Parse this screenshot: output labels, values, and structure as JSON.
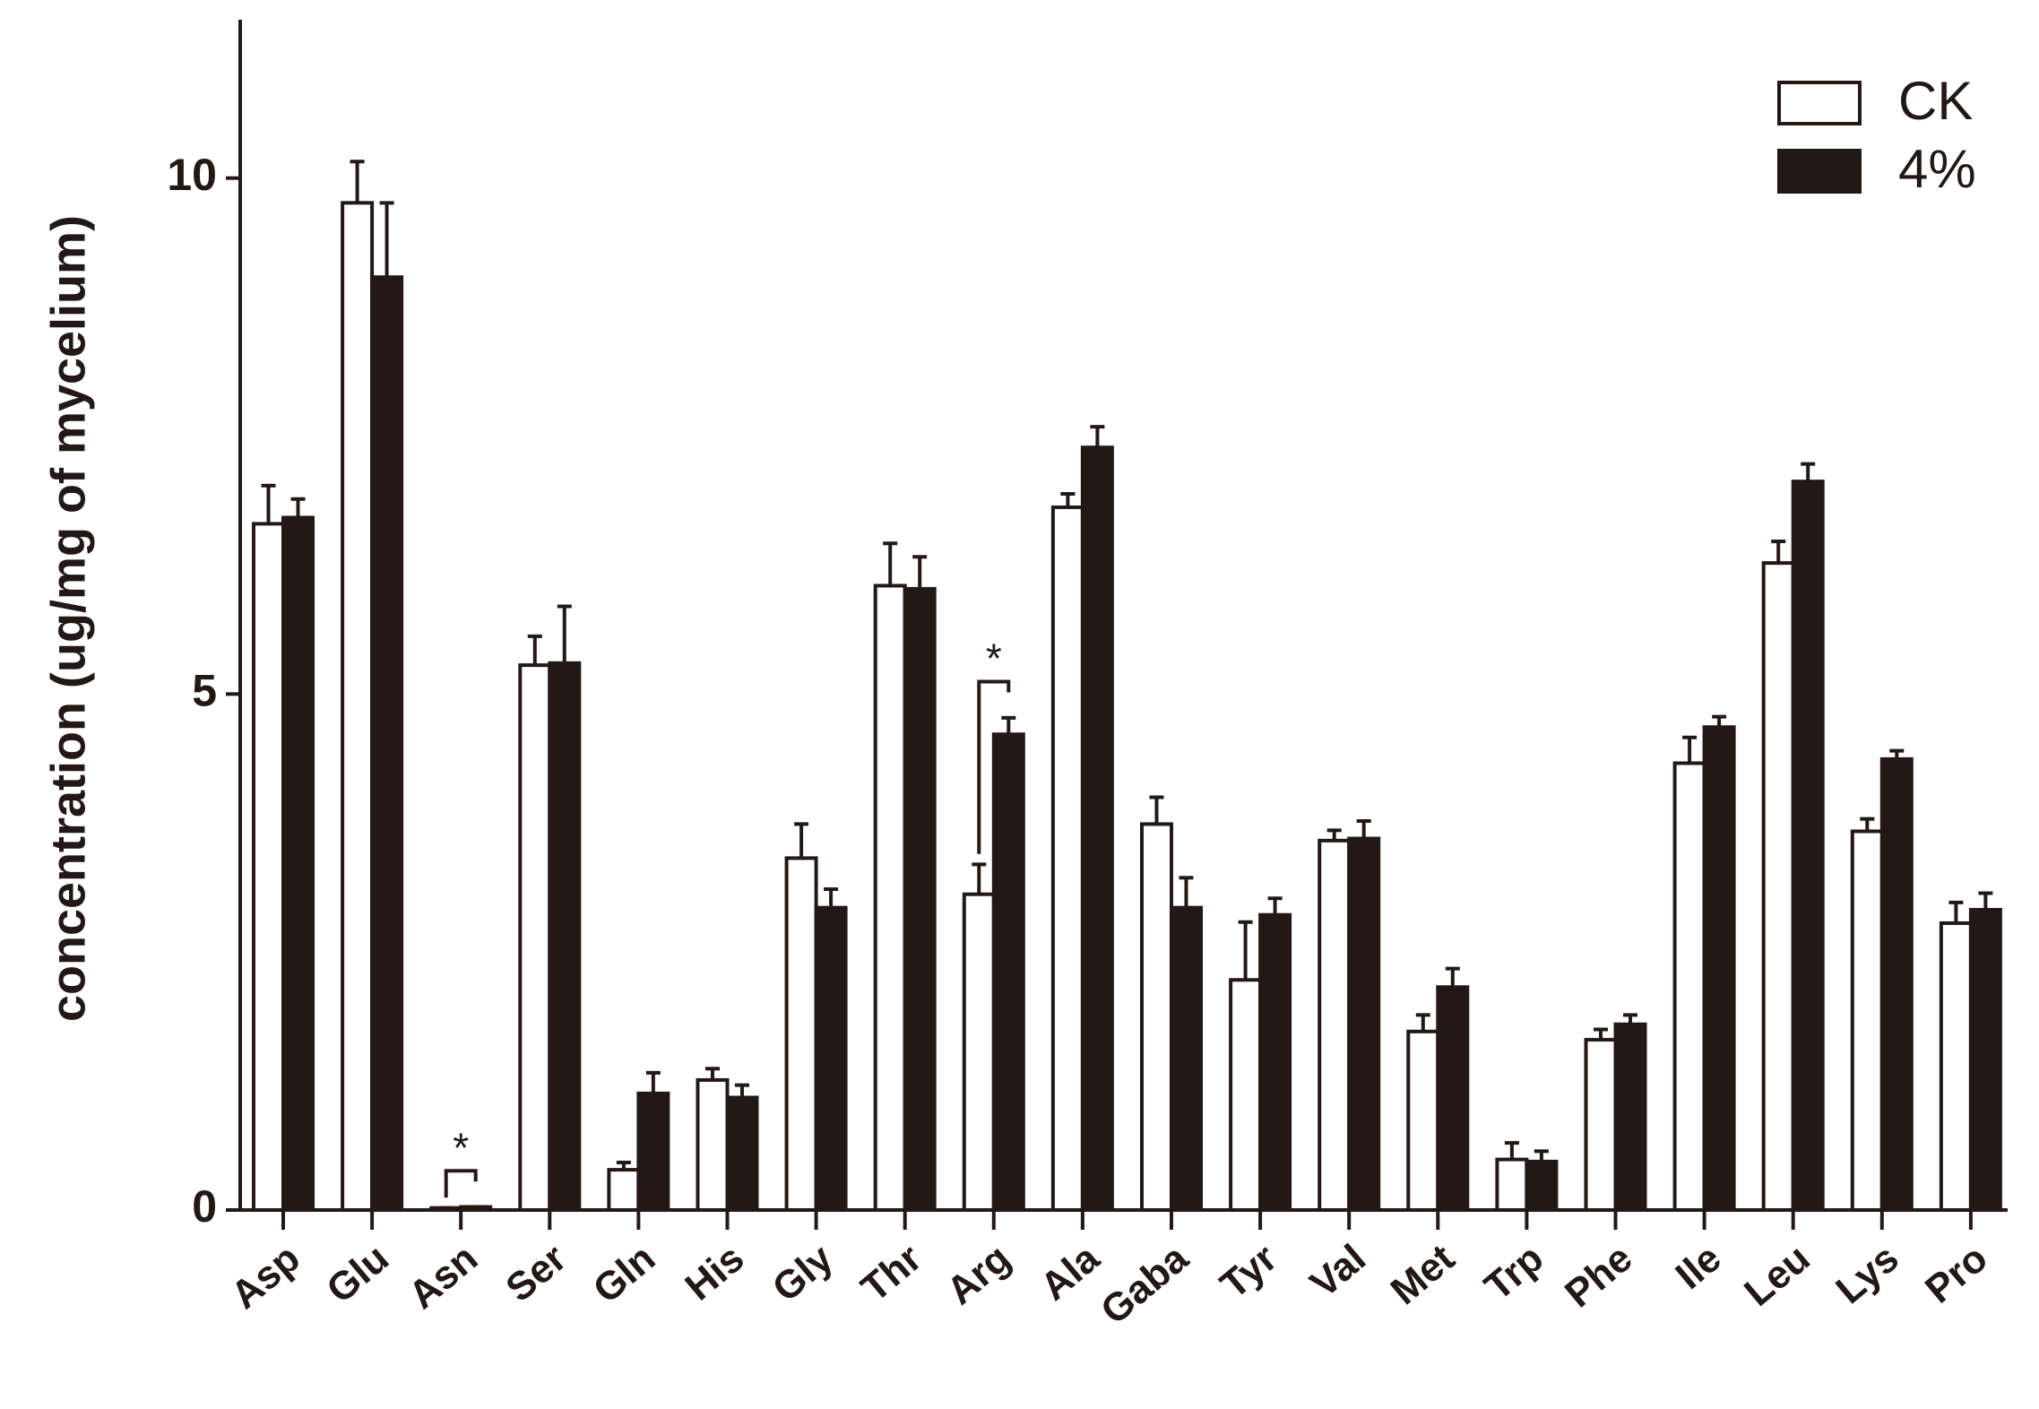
{
  "chart_data": {
    "type": "bar",
    "y_label": "concentration (ug/mg of mycelium)",
    "categories": [
      "Asp",
      "Glu",
      "Asn",
      "Ser",
      "Gln",
      "His",
      "Gly",
      "Thr",
      "Arg",
      "Ala",
      "Gaba",
      "Tyr",
      "Val",
      "Met",
      "Trp",
      "Phe",
      "Ile",
      "Leu",
      "Lys",
      "Pro"
    ],
    "series": [
      {
        "name": "CK",
        "color": "#ffffff",
        "values": [
          6.65,
          9.76,
          0.02,
          5.28,
          0.39,
          1.26,
          3.41,
          6.05,
          3.06,
          6.81,
          3.74,
          2.23,
          3.58,
          1.73,
          0.49,
          1.65,
          4.33,
          6.27,
          3.67,
          2.78
        ],
        "errors": [
          0.37,
          0.4,
          0,
          0.28,
          0.07,
          0.11,
          0.33,
          0.41,
          0.29,
          0.13,
          0.26,
          0.56,
          0.1,
          0.16,
          0.16,
          0.1,
          0.25,
          0.21,
          0.12,
          0.2
        ]
      },
      {
        "name": "4%",
        "color": "#231815",
        "values": [
          6.71,
          9.04,
          0.03,
          5.3,
          1.13,
          1.09,
          2.93,
          6.02,
          4.61,
          7.39,
          2.93,
          2.86,
          3.6,
          2.16,
          0.47,
          1.8,
          4.68,
          7.06,
          4.37,
          2.91
        ],
        "errors": [
          0.18,
          0.72,
          0,
          0.55,
          0.2,
          0.12,
          0.18,
          0.31,
          0.16,
          0.2,
          0.29,
          0.16,
          0.17,
          0.18,
          0.1,
          0.09,
          0.1,
          0.17,
          0.08,
          0.16
        ]
      }
    ],
    "annotations": [
      {
        "category": "Asn",
        "text": "*"
      },
      {
        "category": "Arg",
        "text": "*"
      }
    ],
    "ylim": [
      0,
      11.5
    ],
    "yticks": [
      0,
      5,
      10
    ],
    "legend": "top-right"
  }
}
